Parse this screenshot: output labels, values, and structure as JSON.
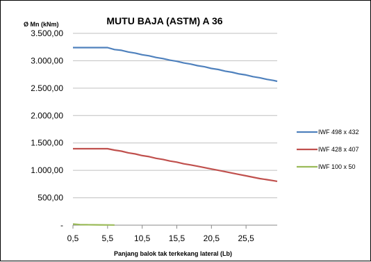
{
  "chart_data": {
    "type": "line",
    "title": "MUTU BAJA (ASTM) A 36",
    "ylabel": "Ø Mn (kNm)",
    "xlabel": "Panjang balok tak terkekang lateral (Lb)",
    "ylim": [
      0,
      3500
    ],
    "xlim": [
      0.5,
      30
    ],
    "y_ticks": [
      0,
      500,
      1000,
      1500,
      2000,
      2500,
      3000,
      3500
    ],
    "y_tick_labels": [
      "-",
      "500,00",
      "1.000,00",
      "1.500,00",
      "2.000,00",
      "2.500,00",
      "3.000,00",
      "3.500,00"
    ],
    "x_ticks": [
      0.5,
      5.5,
      10.5,
      15.5,
      20.5,
      25.5
    ],
    "x_tick_labels": [
      "0,5",
      "5,5",
      "10,5",
      "15,5",
      "20,5",
      "25,5"
    ],
    "grid": "horizontal",
    "legend_position": "right",
    "series": [
      {
        "name": "IWF 498 x 432",
        "color": "#4F81BD",
        "x": [
          0.5,
          1.5,
          2.5,
          3.5,
          4.5,
          5.5,
          6.5,
          7.5,
          8.5,
          9.5,
          10.5,
          11.5,
          12.5,
          13.5,
          14.5,
          15.5,
          16.5,
          17.5,
          18.5,
          19.5,
          20.5,
          21.5,
          22.5,
          23.5,
          24.5,
          25.5,
          26.5,
          27.5,
          28.5,
          29.5,
          30
        ],
        "y": [
          3240,
          3240,
          3240,
          3240,
          3240,
          3240,
          3205,
          3190,
          3160,
          3140,
          3110,
          3090,
          3060,
          3040,
          3010,
          2990,
          2960,
          2940,
          2910,
          2890,
          2860,
          2840,
          2810,
          2790,
          2760,
          2740,
          2710,
          2690,
          2660,
          2640,
          2625
        ]
      },
      {
        "name": "IWF 428 x 407",
        "color": "#C0504D",
        "x": [
          0.5,
          1.5,
          2.5,
          3.5,
          4.5,
          5.5,
          6.5,
          7.5,
          8.5,
          9.5,
          10.5,
          11.5,
          12.5,
          13.5,
          14.5,
          15.5,
          16.5,
          17.5,
          18.5,
          19.5,
          20.5,
          21.5,
          22.5,
          23.5,
          24.5,
          25.5,
          26.5,
          27.5,
          28.5,
          29.5,
          30
        ],
        "y": [
          1395,
          1395,
          1395,
          1395,
          1395,
          1395,
          1370,
          1350,
          1320,
          1300,
          1270,
          1250,
          1220,
          1200,
          1170,
          1150,
          1120,
          1100,
          1075,
          1050,
          1025,
          1000,
          975,
          950,
          925,
          900,
          875,
          850,
          830,
          810,
          800
        ]
      },
      {
        "name": "IWF 100 x 50",
        "color": "#9BBB59",
        "x": [
          0.5,
          1.5,
          2.5,
          3.5,
          4.5,
          5.5,
          6.5
        ],
        "y": [
          20,
          10,
          8,
          6,
          5,
          4,
          3
        ]
      }
    ]
  }
}
